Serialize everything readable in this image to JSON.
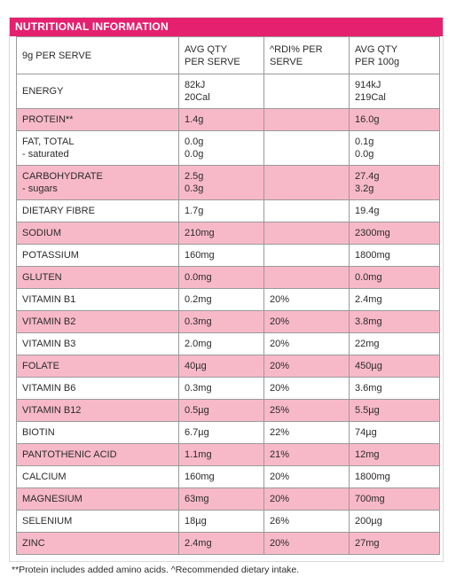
{
  "title": "NUTRITIONAL INFORMATION",
  "header": {
    "serve": "9g PER SERVE",
    "avg_serve": [
      "AVG QTY",
      "PER SERVE"
    ],
    "rdi": [
      "^RDI% PER",
      "SERVE"
    ],
    "avg_100": [
      "AVG QTY",
      "PER 100g"
    ]
  },
  "rows": [
    {
      "label": [
        "ENERGY"
      ],
      "serve": [
        "82kJ",
        "20Cal"
      ],
      "rdi": "",
      "per100": [
        "914kJ",
        "219Cal"
      ],
      "pink": false
    },
    {
      "label": [
        "PROTEIN**"
      ],
      "serve": [
        "1.4g"
      ],
      "rdi": "",
      "per100": [
        "16.0g"
      ],
      "pink": true
    },
    {
      "label": [
        "FAT, TOTAL",
        "- saturated"
      ],
      "serve": [
        "0.0g",
        "0.0g"
      ],
      "rdi": "",
      "per100": [
        "0.1g",
        "0.0g"
      ],
      "pink": false
    },
    {
      "label": [
        "CARBOHYDRATE",
        "- sugars"
      ],
      "serve": [
        "2.5g",
        "0.3g"
      ],
      "rdi": "",
      "per100": [
        "27.4g",
        "3.2g"
      ],
      "pink": true
    },
    {
      "label": [
        "DIETARY FIBRE"
      ],
      "serve": [
        "1.7g"
      ],
      "rdi": "",
      "per100": [
        "19.4g"
      ],
      "pink": false
    },
    {
      "label": [
        "SODIUM"
      ],
      "serve": [
        "210mg"
      ],
      "rdi": "",
      "per100": [
        "2300mg"
      ],
      "pink": true
    },
    {
      "label": [
        "POTASSIUM"
      ],
      "serve": [
        "160mg"
      ],
      "rdi": "",
      "per100": [
        "1800mg"
      ],
      "pink": false
    },
    {
      "label": [
        "GLUTEN"
      ],
      "serve": [
        "0.0mg"
      ],
      "rdi": "",
      "per100": [
        "0.0mg"
      ],
      "pink": true
    },
    {
      "label": [
        "VITAMIN B1"
      ],
      "serve": [
        "0.2mg"
      ],
      "rdi": "20%",
      "per100": [
        "2.4mg"
      ],
      "pink": false
    },
    {
      "label": [
        "VITAMIN B2"
      ],
      "serve": [
        "0.3mg"
      ],
      "rdi": "20%",
      "per100": [
        "3.8mg"
      ],
      "pink": true
    },
    {
      "label": [
        "VITAMIN B3"
      ],
      "serve": [
        "2.0mg"
      ],
      "rdi": "20%",
      "per100": [
        "22mg"
      ],
      "pink": false
    },
    {
      "label": [
        "FOLATE"
      ],
      "serve": [
        "40µg"
      ],
      "rdi": "20%",
      "per100": [
        "450µg"
      ],
      "pink": true
    },
    {
      "label": [
        "VITAMIN B6"
      ],
      "serve": [
        "0.3mg"
      ],
      "rdi": "20%",
      "per100": [
        "3.6mg"
      ],
      "pink": false
    },
    {
      "label": [
        "VITAMIN B12"
      ],
      "serve": [
        "0.5µg"
      ],
      "rdi": "25%",
      "per100": [
        "5.5µg"
      ],
      "pink": true
    },
    {
      "label": [
        "BIOTIN"
      ],
      "serve": [
        "6.7µg"
      ],
      "rdi": "22%",
      "per100": [
        "74µg"
      ],
      "pink": false
    },
    {
      "label": [
        "PANTOTHENIC ACID"
      ],
      "serve": [
        "1.1mg"
      ],
      "rdi": "21%",
      "per100": [
        "12mg"
      ],
      "pink": true
    },
    {
      "label": [
        "CALCIUM"
      ],
      "serve": [
        "160mg"
      ],
      "rdi": "20%",
      "per100": [
        "1800mg"
      ],
      "pink": false
    },
    {
      "label": [
        "MAGNESIUM"
      ],
      "serve": [
        "63mg"
      ],
      "rdi": "20%",
      "per100": [
        "700mg"
      ],
      "pink": true
    },
    {
      "label": [
        "SELENIUM"
      ],
      "serve": [
        "18µg"
      ],
      "rdi": "26%",
      "per100": [
        "200µg"
      ],
      "pink": false
    },
    {
      "label": [
        "ZINC"
      ],
      "serve": [
        "2.4mg"
      ],
      "rdi": "20%",
      "per100": [
        "27mg"
      ],
      "pink": true
    }
  ],
  "footnote": "**Protein includes added amino acids. ^Recommended dietary intake.",
  "colors": {
    "accent": "#e5216f",
    "row_pink": "#f7b9c8"
  }
}
